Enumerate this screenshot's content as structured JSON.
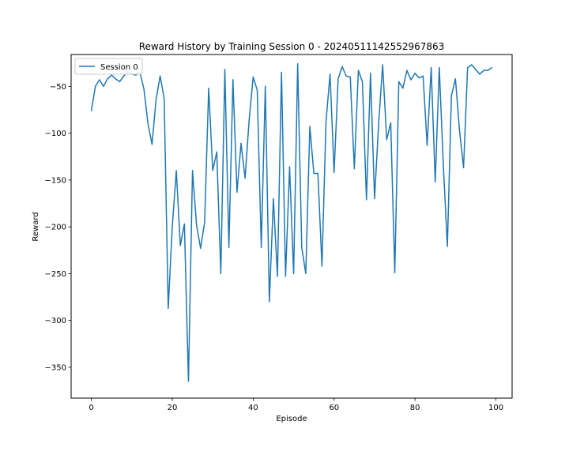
{
  "chart_data": {
    "type": "line",
    "title": "Reward History by Training Session 0 - 20240511142552967863",
    "xlabel": "Episode",
    "ylabel": "Reward",
    "xlim": [
      -5,
      104
    ],
    "ylim": [
      -383,
      -16
    ],
    "xticks": [
      0,
      20,
      40,
      60,
      80,
      100
    ],
    "yticks": [
      -50,
      -100,
      -150,
      -200,
      -250,
      -300,
      -350
    ],
    "grid": false,
    "legend_position": "top-left",
    "series": [
      {
        "name": "Session 0",
        "color": "#1f77b4",
        "x": [
          0,
          1,
          2,
          3,
          4,
          5,
          6,
          7,
          8,
          9,
          10,
          11,
          12,
          13,
          14,
          15,
          16,
          17,
          18,
          19,
          20,
          21,
          22,
          23,
          24,
          25,
          26,
          27,
          28,
          29,
          30,
          31,
          32,
          33,
          34,
          35,
          36,
          37,
          38,
          39,
          40,
          41,
          42,
          43,
          44,
          45,
          46,
          47,
          48,
          49,
          50,
          51,
          52,
          53,
          54,
          55,
          56,
          57,
          58,
          59,
          60,
          61,
          62,
          63,
          64,
          65,
          66,
          67,
          68,
          69,
          70,
          71,
          72,
          73,
          74,
          75,
          76,
          77,
          78,
          79,
          80,
          81,
          82,
          83,
          84,
          85,
          86,
          87,
          88,
          89,
          90,
          91,
          92,
          93,
          94,
          95,
          96,
          97,
          98,
          99
        ],
        "y": [
          -76,
          -50,
          -43,
          -50,
          -42,
          -38,
          -42,
          -45,
          -39,
          -34,
          -37,
          -38,
          -35,
          -53,
          -90,
          -112,
          -64,
          -39,
          -63,
          -287,
          -200,
          -140,
          -220,
          -197,
          -365,
          -140,
          -198,
          -223,
          -195,
          -52,
          -140,
          -120,
          -250,
          -32,
          -222,
          -43,
          -163,
          -111,
          -148,
          -86,
          -40,
          -54,
          -222,
          -50,
          -280,
          -170,
          -253,
          -35,
          -253,
          -136,
          -250,
          -26,
          -222,
          -250,
          -93,
          -143,
          -143,
          -242,
          -88,
          -37,
          -142,
          -42,
          -29,
          -39,
          -40,
          -138,
          -33,
          -45,
          -171,
          -36,
          -170,
          -91,
          -27,
          -107,
          -89,
          -249,
          -45,
          -52,
          -33,
          -43,
          -36,
          -41,
          -39,
          -113,
          -30,
          -152,
          -30,
          -134,
          -221,
          -60,
          -42,
          -97,
          -137,
          -30,
          -27,
          -32,
          -37,
          -33,
          -33,
          -30
        ]
      }
    ]
  }
}
